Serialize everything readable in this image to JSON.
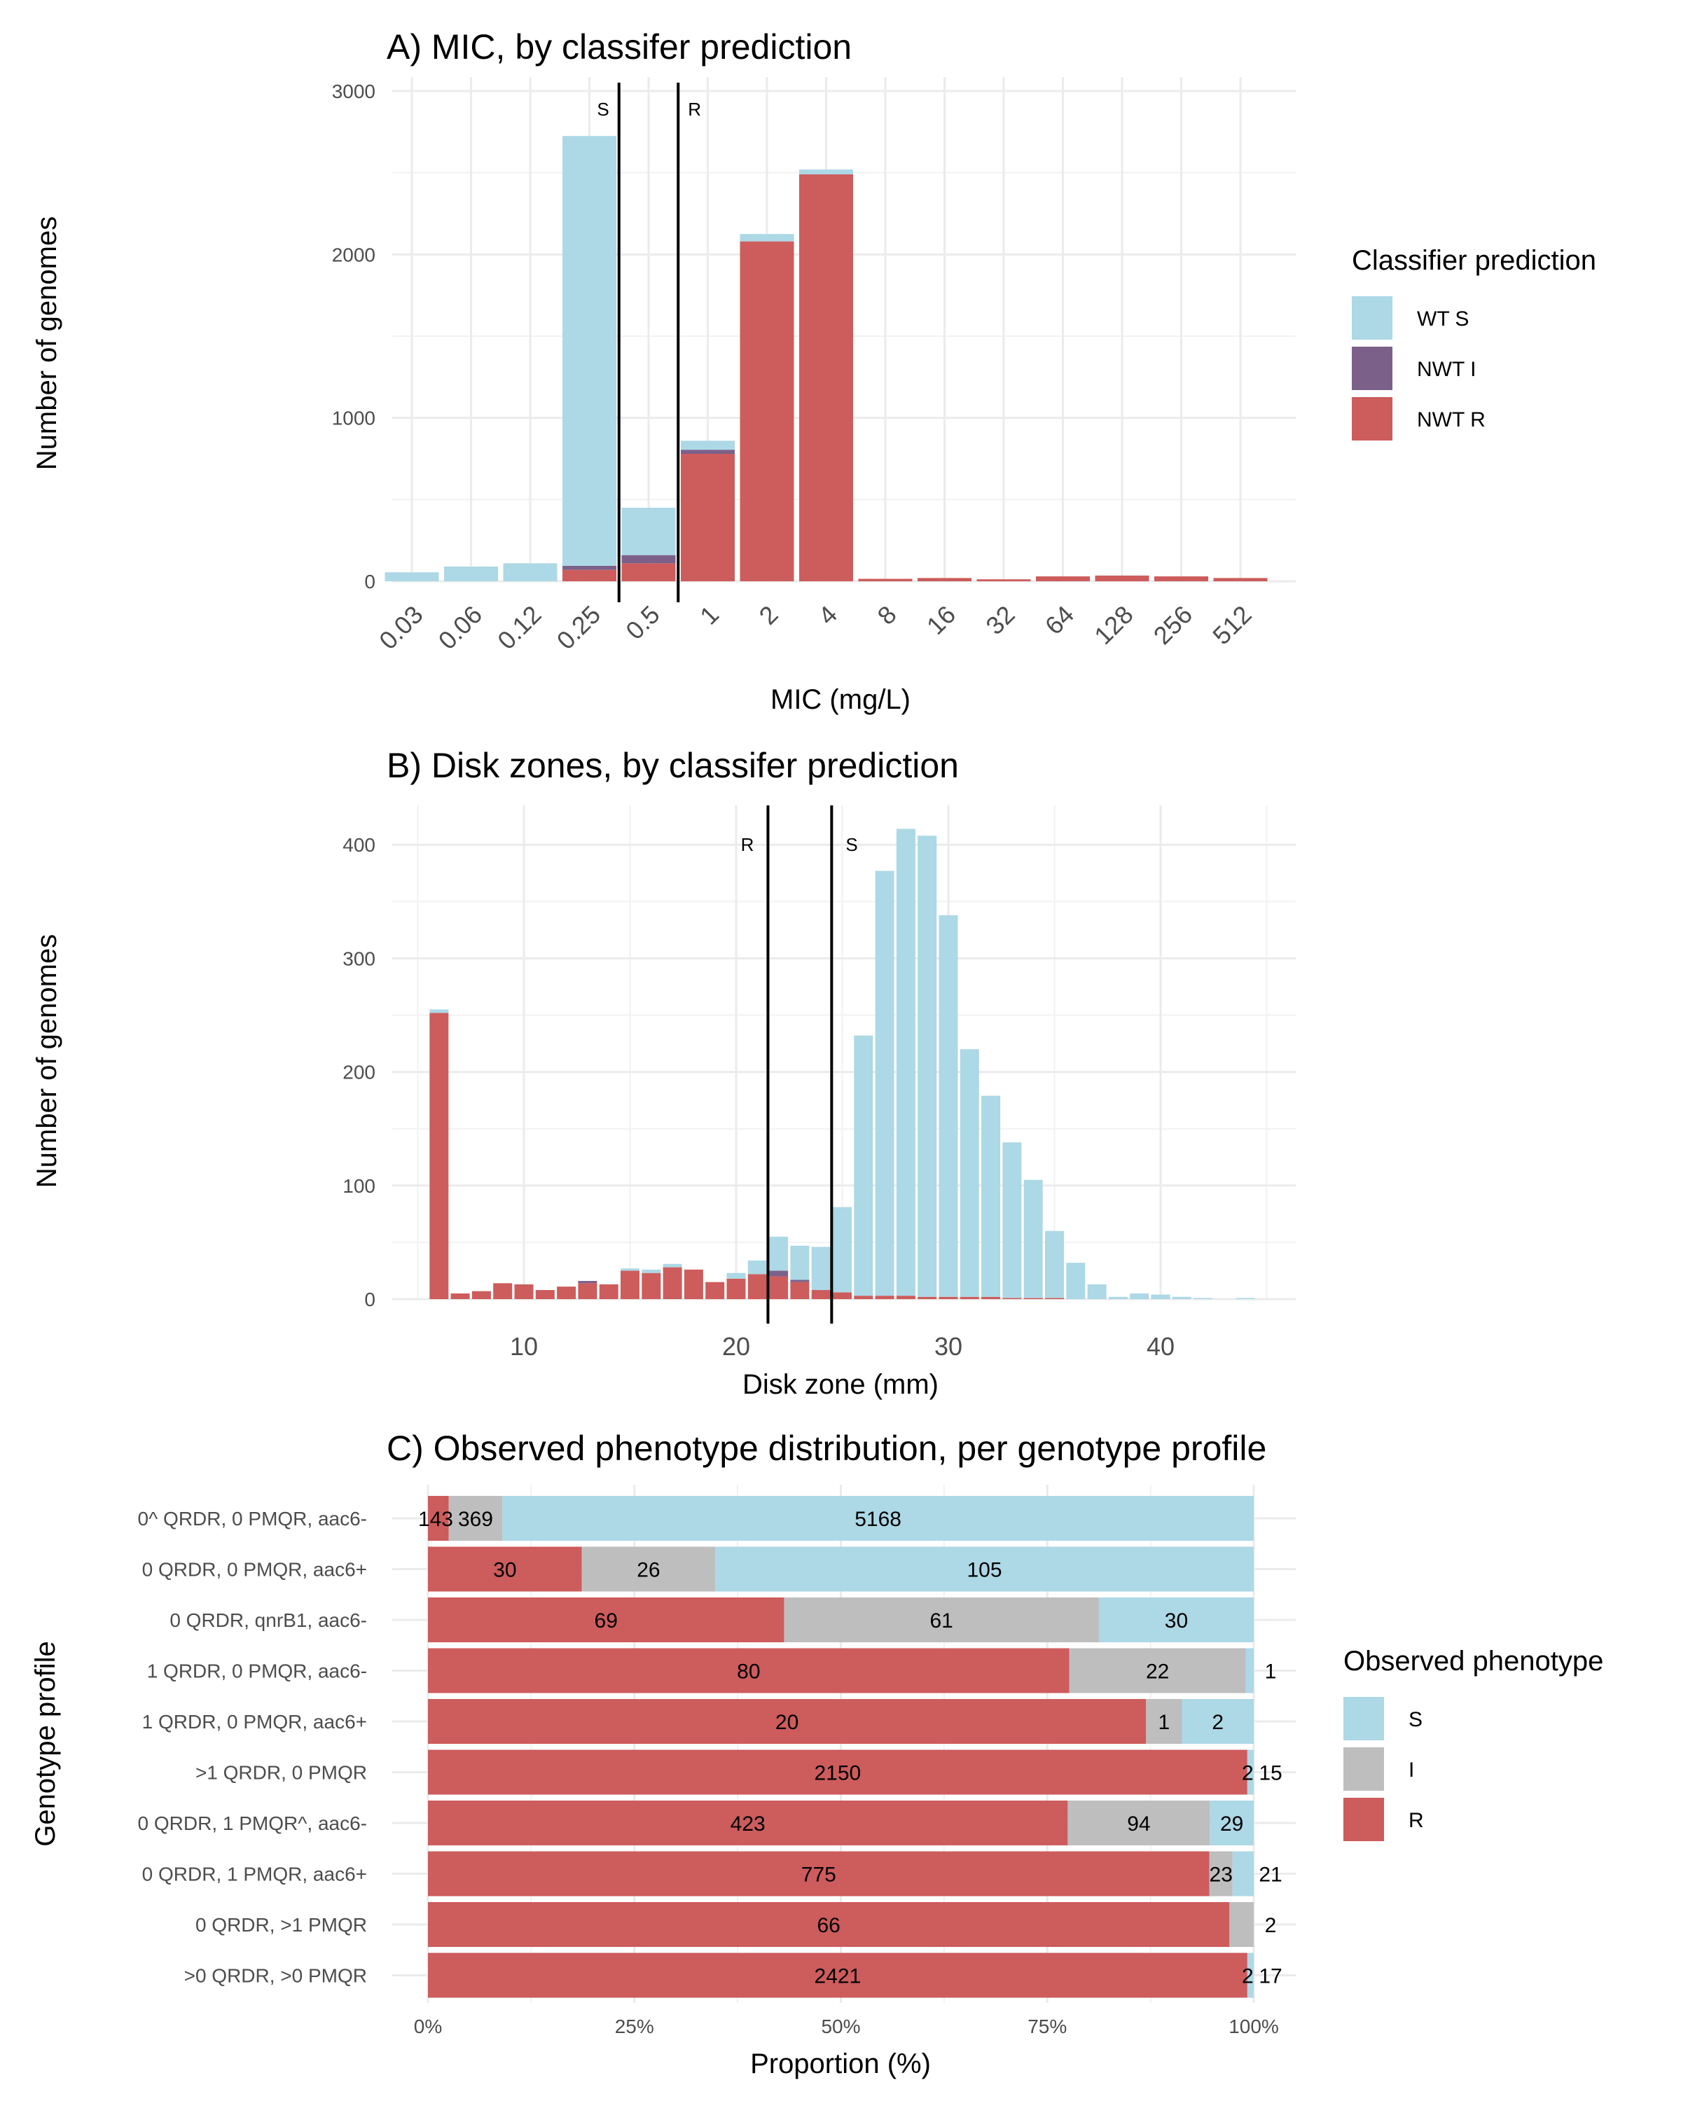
{
  "colors": {
    "S": "#add8e6",
    "I": "#7b618a",
    "R": "#cd5c5c",
    "obs_I": "#bebebe",
    "grid": "#ebebeb",
    "vline": "#000000"
  },
  "chart_data": [
    {
      "id": "A",
      "type": "bar",
      "stacked": true,
      "title": "A) MIC, by classifer prediction",
      "xlabel": "MIC (mg/L)",
      "ylabel": "Number of genomes",
      "ylim": [
        0,
        3000
      ],
      "yticks": [
        "0",
        "1000",
        "2000",
        "3000"
      ],
      "ytick_values": [
        0,
        1000,
        2000,
        3000
      ],
      "categories": [
        "0.03",
        "0.06",
        "0.12",
        "0.25",
        "0.5",
        "1",
        "2",
        "4",
        "8",
        "16",
        "32",
        "64",
        "128",
        "256",
        "512"
      ],
      "series": [
        {
          "name": "NWT R",
          "color_key": "R",
          "values": [
            0,
            0,
            0,
            70,
            110,
            780,
            2080,
            2490,
            15,
            20,
            12,
            30,
            35,
            30,
            20
          ]
        },
        {
          "name": "NWT I",
          "color_key": "I",
          "values": [
            0,
            0,
            0,
            25,
            50,
            25,
            0,
            0,
            0,
            0,
            0,
            0,
            0,
            0,
            0
          ]
        },
        {
          "name": "WT S",
          "color_key": "S",
          "values": [
            55,
            90,
            110,
            2630,
            290,
            55,
            45,
            30,
            0,
            0,
            0,
            0,
            0,
            0,
            0
          ]
        }
      ],
      "breakpoints": [
        {
          "label": "S",
          "after_category": 3,
          "label_side": "left"
        },
        {
          "label": "R",
          "after_category": 4,
          "label_side": "right"
        }
      ],
      "grid": true
    },
    {
      "id": "B",
      "type": "bar",
      "stacked": true,
      "title": "B) Disk zones, by classifer prediction",
      "xlabel": "Disk zone (mm)",
      "ylabel": "Number of genomes",
      "xlim": [
        4.9,
        46.1
      ],
      "ylim": [
        0,
        435
      ],
      "xticks": [
        "10",
        "20",
        "30",
        "40"
      ],
      "xtick_values": [
        10,
        20,
        30,
        40
      ],
      "yticks": [
        "0",
        "100",
        "200",
        "300",
        "400"
      ],
      "ytick_values": [
        0,
        100,
        200,
        300,
        400
      ],
      "x": [
        6,
        7,
        8,
        9,
        10,
        11,
        12,
        13,
        14,
        15,
        16,
        17,
        18,
        19,
        20,
        21,
        22,
        23,
        24,
        25,
        26,
        27,
        28,
        29,
        30,
        31,
        32,
        33,
        34,
        35,
        36,
        37,
        38,
        39,
        40,
        41,
        42,
        43,
        44
      ],
      "series": [
        {
          "name": "NWT R",
          "color_key": "R",
          "values": [
            252,
            5,
            7,
            14,
            13,
            8,
            11,
            14,
            13,
            25,
            23,
            28,
            26,
            15,
            18,
            22,
            20,
            15,
            8,
            6,
            3,
            3,
            3,
            2,
            2,
            2,
            2,
            1,
            1,
            1,
            0,
            0,
            0,
            0,
            0,
            0,
            0,
            0,
            0
          ]
        },
        {
          "name": "NWT I",
          "color_key": "I",
          "values": [
            0,
            0,
            0,
            0,
            0,
            0,
            0,
            2,
            0,
            0,
            0,
            0,
            0,
            0,
            0,
            0,
            5,
            2,
            0,
            0,
            0,
            0,
            0,
            0,
            0,
            0,
            0,
            0,
            0,
            0,
            0,
            0,
            0,
            0,
            0,
            0,
            0,
            0,
            0
          ]
        },
        {
          "name": "WT S",
          "color_key": "S",
          "values": [
            3,
            0,
            0,
            0,
            0,
            0,
            0,
            0,
            0,
            2,
            3,
            3,
            0,
            0,
            5,
            12,
            30,
            30,
            38,
            75,
            229,
            374,
            411,
            406,
            336,
            218,
            177,
            137,
            104,
            59,
            32,
            13,
            2,
            5,
            4,
            2,
            1,
            0,
            1
          ]
        }
      ],
      "breakpoints": [
        {
          "label": "R",
          "x": 21.5,
          "label_side": "left"
        },
        {
          "label": "S",
          "x": 24.5,
          "label_side": "right"
        }
      ],
      "grid": true
    },
    {
      "id": "C",
      "type": "bar",
      "orientation": "horizontal",
      "stacked": true,
      "percent": true,
      "title": "C) Observed phenotype distribution, per genotype profile",
      "xlabel": "Proportion (%)",
      "ylabel": "Genotype profile",
      "xticks": [
        "0%",
        "25%",
        "50%",
        "75%",
        "100%"
      ],
      "xtick_values": [
        0,
        25,
        50,
        75,
        100
      ],
      "categories": [
        "0^ QRDR, 0 PMQR, aac6-",
        "0 QRDR, 0 PMQR, aac6+",
        "0 QRDR, qnrB1, aac6-",
        "1 QRDR, 0 PMQR, aac6-",
        "1 QRDR, 0 PMQR, aac6+",
        ">1 QRDR, 0 PMQR",
        "0 QRDR, 1 PMQR^, aac6-",
        "0 QRDR, 1 PMQR, aac6+",
        "0 QRDR, >1 PMQR",
        ">0 QRDR, >0 PMQR"
      ],
      "series": [
        {
          "name": "R",
          "color_key": "R",
          "values": [
            143,
            30,
            69,
            80,
            20,
            2150,
            423,
            775,
            66,
            2421
          ],
          "labels": [
            "143",
            "30",
            "69",
            "80",
            "20",
            "2150",
            "423",
            "775",
            "66",
            "2421"
          ]
        },
        {
          "name": "I",
          "color_key": "obs_I",
          "values": [
            369,
            26,
            61,
            22,
            1,
            2,
            94,
            23,
            2,
            2
          ],
          "labels": [
            "369",
            "26",
            "61",
            "22",
            "1",
            "2",
            "94",
            "23",
            "2",
            "2"
          ]
        },
        {
          "name": "S",
          "color_key": "S",
          "values": [
            5168,
            105,
            30,
            1,
            2,
            15,
            29,
            21,
            0,
            17
          ],
          "labels": [
            "5168",
            "105",
            "30",
            "1",
            "2",
            "15",
            "29",
            "21",
            "",
            "17"
          ]
        }
      ],
      "grid": true
    }
  ],
  "legends": [
    {
      "id": "legend-classifier",
      "title": "Classifier prediction",
      "entries": [
        {
          "label": "WT S",
          "color_key": "S"
        },
        {
          "label": "NWT I",
          "color_key": "I"
        },
        {
          "label": "NWT R",
          "color_key": "R"
        }
      ]
    },
    {
      "id": "legend-observed",
      "title": "Observed phenotype",
      "entries": [
        {
          "label": "S",
          "color_key": "S"
        },
        {
          "label": "I",
          "color_key": "obs_I"
        },
        {
          "label": "R",
          "color_key": "R"
        }
      ]
    }
  ]
}
